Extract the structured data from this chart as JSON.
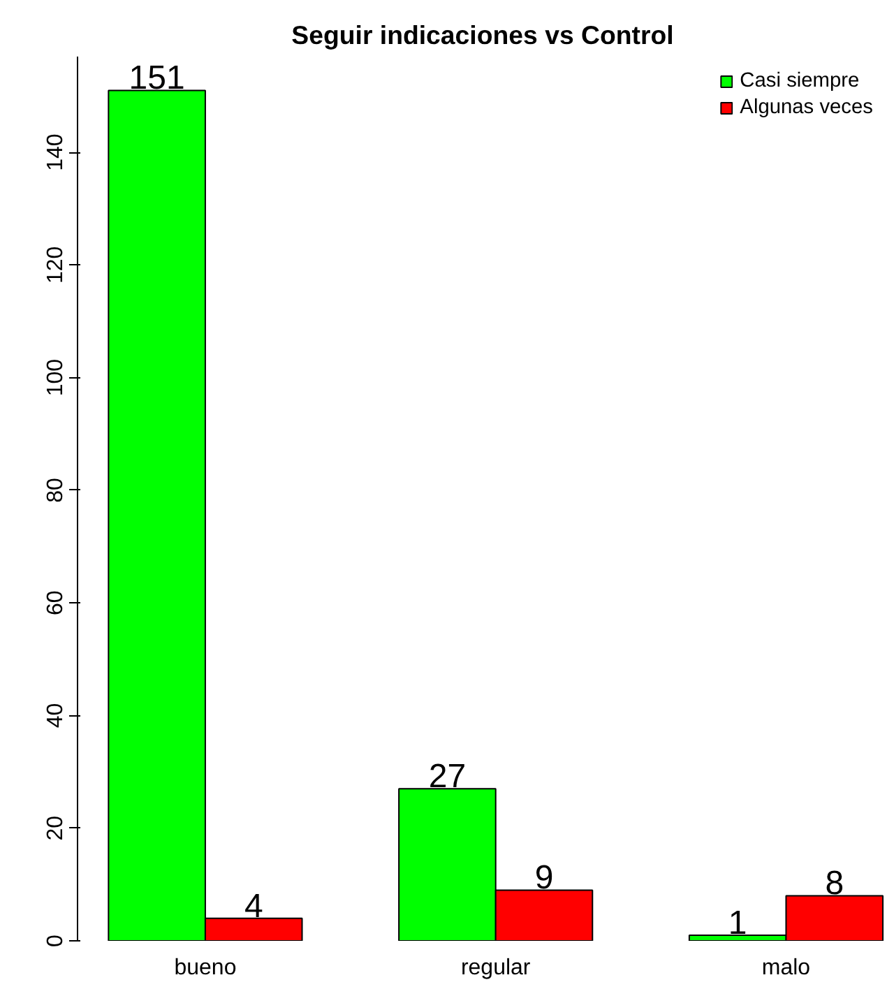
{
  "chart_data": {
    "type": "bar",
    "title": "Seguir indicaciones vs Control",
    "categories": [
      "bueno",
      "regular",
      "malo"
    ],
    "series": [
      {
        "name": "Casi siempre",
        "color": "#00ff00",
        "values": [
          151,
          27,
          1
        ]
      },
      {
        "name": "Algunas veces",
        "color": "#ff0000",
        "values": [
          4,
          9,
          8
        ]
      }
    ],
    "ylim": [
      0,
      157
    ],
    "yticks": [
      0,
      20,
      40,
      60,
      80,
      100,
      120,
      140
    ],
    "grid": false,
    "legend": "top right",
    "data_labels": true
  }
}
